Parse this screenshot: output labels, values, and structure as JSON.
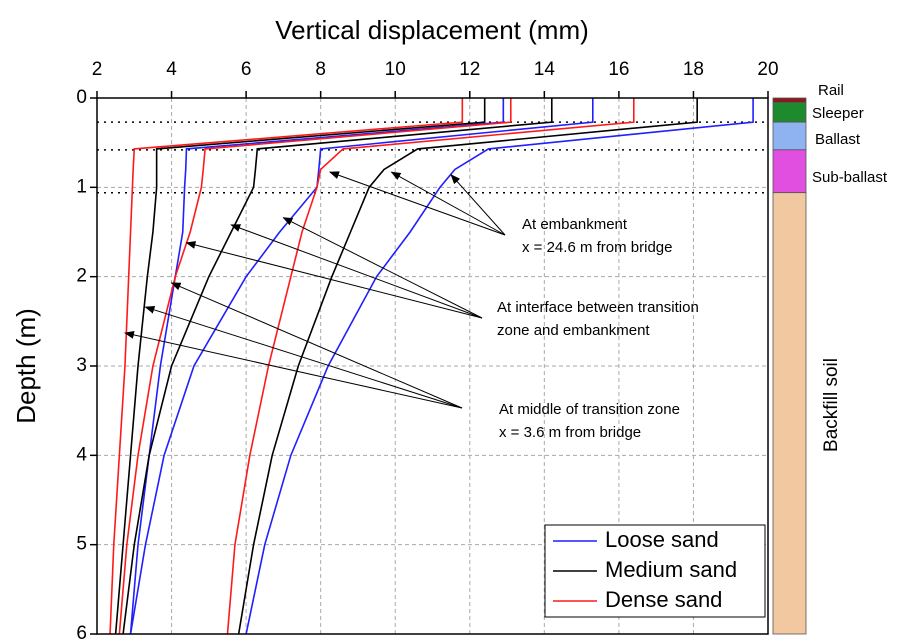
{
  "chart_data": {
    "type": "profile",
    "title": "Vertical displacement (mm)",
    "y_label": "Depth (m)",
    "xlim": [
      2,
      20
    ],
    "xticks": [
      2,
      4,
      6,
      8,
      10,
      12,
      14,
      16,
      18,
      20
    ],
    "ylim": [
      0,
      6
    ],
    "yticks": [
      0,
      1,
      2,
      3,
      4,
      5,
      6
    ],
    "y_inverted": true,
    "grid": true,
    "legend": "lower right",
    "depth": [
      0,
      0.27,
      0.57,
      0.8,
      1.0,
      1.5,
      2,
      3,
      4,
      5,
      6
    ],
    "series": [
      {
        "name": "Loose sand",
        "color": "#1f1fff",
        "profiles": [
          [
            12.9,
            12.9,
            4.4,
            4.38,
            4.35,
            4.3,
            4.1,
            3.7,
            3.4,
            3.1,
            2.9
          ],
          [
            15.3,
            15.3,
            8.0,
            7.95,
            7.9,
            6.9,
            6.0,
            4.6,
            3.8,
            3.3,
            2.9
          ],
          [
            19.6,
            19.6,
            12.5,
            11.6,
            11.2,
            10.4,
            9.5,
            8.2,
            7.2,
            6.5,
            6.0
          ]
        ]
      },
      {
        "name": "Medium sand",
        "color": "#000000",
        "profiles": [
          [
            12.4,
            12.4,
            3.6,
            3.6,
            3.6,
            3.5,
            3.35,
            3.1,
            2.9,
            2.7,
            2.5
          ],
          [
            14.2,
            14.2,
            6.3,
            6.25,
            6.2,
            5.6,
            5.0,
            4.0,
            3.4,
            3.0,
            2.7
          ],
          [
            18.1,
            18.1,
            10.6,
            9.7,
            9.3,
            8.8,
            8.3,
            7.4,
            6.7,
            6.2,
            5.8
          ]
        ]
      },
      {
        "name": "Dense sand",
        "color": "#ff1a1a",
        "profiles": [
          [
            11.8,
            11.8,
            3.0,
            2.97,
            2.95,
            2.9,
            2.85,
            2.75,
            2.6,
            2.45,
            2.35
          ],
          [
            13.1,
            13.1,
            4.9,
            4.85,
            4.8,
            4.5,
            4.1,
            3.5,
            3.1,
            2.8,
            2.6
          ],
          [
            16.4,
            16.4,
            8.6,
            8.0,
            7.9,
            7.5,
            7.2,
            6.6,
            6.1,
            5.7,
            5.5
          ]
        ]
      }
    ],
    "annotations": [
      {
        "lines": [
          "At embankment",
          "x = 24.6 m from bridge"
        ],
        "points": [
          {
            "x": 8.25,
            "y": 0.83
          },
          {
            "x": 9.9,
            "y": 0.83
          },
          {
            "x": 11.5,
            "y": 0.86
          }
        ]
      },
      {
        "lines": [
          "At interface between transition",
          "zone and embankment"
        ],
        "points": [
          {
            "x": 4.4,
            "y": 1.62
          },
          {
            "x": 5.6,
            "y": 1.42
          },
          {
            "x": 7.0,
            "y": 1.34
          }
        ]
      },
      {
        "lines": [
          "At middle of transition zone",
          "x = 3.6 m from bridge"
        ],
        "points": [
          {
            "x": 2.75,
            "y": 2.63
          },
          {
            "x": 3.3,
            "y": 2.34
          },
          {
            "x": 4.0,
            "y": 2.07
          }
        ]
      }
    ],
    "layers": [
      {
        "name": "Rail",
        "top": 0,
        "bottom": 0.05,
        "color": "#8b1a1a"
      },
      {
        "name": "Sleeper",
        "top": 0.05,
        "bottom": 0.27,
        "color": "#1e8a2e"
      },
      {
        "name": "Ballast",
        "top": 0.27,
        "bottom": 0.58,
        "color": "#8fb3f0"
      },
      {
        "name": "Sub-ballast",
        "top": 0.58,
        "bottom": 1.06,
        "color": "#e04fe0"
      },
      {
        "name": "Backfill soil",
        "top": 1.06,
        "bottom": 6,
        "color": "#f2c8a0"
      }
    ]
  }
}
